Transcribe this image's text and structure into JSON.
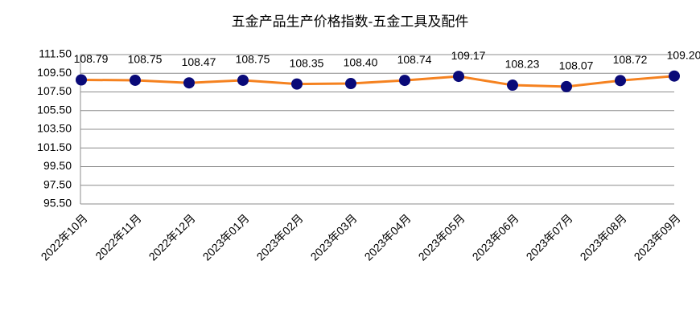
{
  "chart_data": {
    "type": "line",
    "title": "五金产品生产价格指数-五金工具及配件",
    "categories": [
      "2022年10月",
      "2022年11月",
      "2022年12月",
      "2023年01月",
      "2023年02月",
      "2023年03月",
      "2023年04月",
      "2023年05月",
      "2023年06月",
      "2023年07月",
      "2023年08月",
      "2023年09月"
    ],
    "series": [
      {
        "name": "五金工具及配件",
        "line_color": "#f58220",
        "marker_color": "#0a0a78",
        "values": [
          108.79,
          108.75,
          108.47,
          108.75,
          108.35,
          108.4,
          108.74,
          109.17,
          108.23,
          108.07,
          108.72,
          109.2
        ],
        "value_labels": [
          "108.79",
          "108.75",
          "108.47",
          "108.75",
          "108.35",
          "108.40",
          "108.74",
          "109.17",
          "108.23",
          "108.07",
          "108.72",
          "109.20"
        ]
      }
    ],
    "ylim": [
      95.5,
      111.5
    ],
    "yticks": [
      {
        "value": 95.5,
        "label": "95.50"
      },
      {
        "value": 97.5,
        "label": "97.50"
      },
      {
        "value": 99.5,
        "label": "99.50"
      },
      {
        "value": 101.5,
        "label": "101.50"
      },
      {
        "value": 103.5,
        "label": "103.50"
      },
      {
        "value": 105.5,
        "label": "105.50"
      },
      {
        "value": 107.5,
        "label": "107.50"
      },
      {
        "value": 109.5,
        "label": "109.50"
      },
      {
        "value": 111.5,
        "label": "111.50"
      }
    ],
    "grid": true
  }
}
